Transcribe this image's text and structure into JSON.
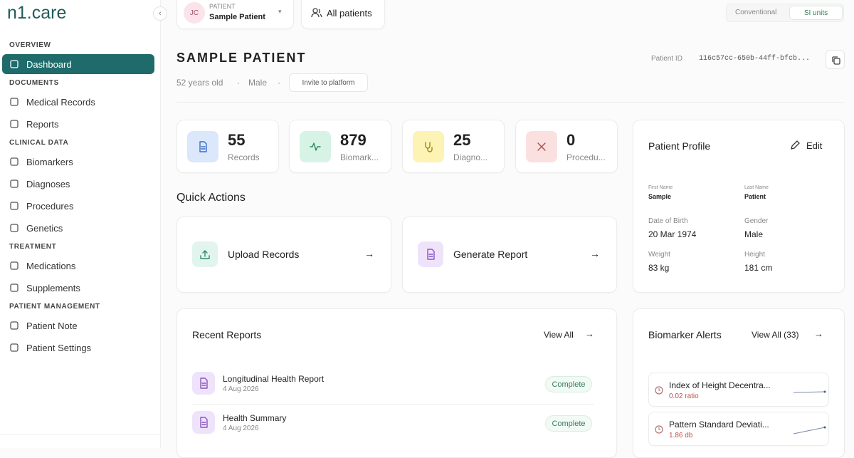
{
  "sidebar": {
    "logo": "n1.care",
    "sections": [
      {
        "title": "OVERVIEW",
        "items": [
          "Dashboard"
        ]
      },
      {
        "title": "DOCUMENTS",
        "items": [
          "Medical Records",
          "Reports"
        ]
      },
      {
        "title": "CLINICAL DATA",
        "items": [
          "Biomarkers",
          "Diagnoses",
          "Procedures",
          "Genetics"
        ]
      },
      {
        "title": "TREATMENT",
        "items": [
          "Medications",
          "Supplements"
        ]
      },
      {
        "title": "PATIENT MANAGEMENT",
        "items": [
          "Patient Note",
          "Patient Settings"
        ]
      }
    ]
  },
  "header": {
    "initials": "JC",
    "patient_label": "PATIENT",
    "patient_name": "Sample Patient",
    "all_patients": "All patients",
    "units": [
      "Conventional",
      "SI units"
    ]
  },
  "patient": {
    "name": "SAMPLE PATIENT",
    "age": "52 years old",
    "sex": "Male",
    "invite": "Invite to platform",
    "id_label": "Patient ID",
    "id": "116c57cc-650b-44ff-bfcb..."
  },
  "stats": [
    {
      "value": 55,
      "label": "Records"
    },
    {
      "value": 879,
      "label": "Biomark..."
    },
    {
      "value": 25,
      "label": "Diagno..."
    },
    {
      "value": 0,
      "label": "Procedu..."
    }
  ],
  "quick_actions": {
    "title": "Quick Actions",
    "items": [
      "Upload Records",
      "Generate Report"
    ]
  },
  "profile": {
    "title": "Patient Profile",
    "edit": "Edit",
    "fields": [
      {
        "label": "First Name",
        "value": "Sample"
      },
      {
        "label": "Last Name",
        "value": "Patient"
      },
      {
        "label": "Date of Birth",
        "value": "20 Mar 1974"
      },
      {
        "label": "Gender",
        "value": "Male"
      },
      {
        "label": "Weight",
        "value": "83 kg"
      },
      {
        "label": "Height",
        "value": "181 cm"
      }
    ]
  },
  "recent_reports": {
    "title": "Recent Reports",
    "view_all": "View All",
    "items": [
      {
        "name": "Longitudinal Health Report",
        "date": "4 Aug 2026",
        "status": "Complete"
      },
      {
        "name": "Health Summary",
        "date": "4 Aug 2026",
        "status": "Complete"
      }
    ]
  },
  "biomarker_alerts": {
    "title": "Biomarker Alerts",
    "view_all": "View All (33)",
    "items": [
      {
        "name": "Index of Height Decentra...",
        "value": "0.02 ratio"
      },
      {
        "name": "Pattern Standard Deviati...",
        "value": "1.86 db"
      }
    ]
  }
}
